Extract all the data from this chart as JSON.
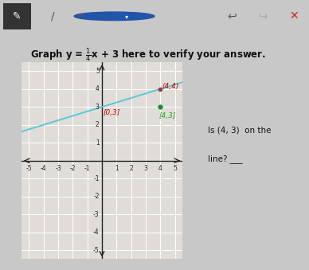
{
  "slope": 0.25,
  "intercept": 3,
  "xlim": [
    -5.5,
    5.5
  ],
  "ylim": [
    -5.5,
    5.5
  ],
  "line_color": "#5bc8d8",
  "line_x_start": -5.5,
  "line_x_end": 5.5,
  "point_on_line_x": 4,
  "point_on_line_y": 4,
  "point_on_line_color": "#5a5a5a",
  "point_test_x": 4,
  "point_test_y": 3,
  "point_test_color": "#228B22",
  "label_on_line": "(4,4)",
  "label_on_line_color": "#cc0000",
  "label_test": "[4,3]",
  "label_test_color": "#22aa22",
  "label_intercept": "[0,3]",
  "label_intercept_color": "#cc0000",
  "side_text_line1": "Is (4, 3)  on the",
  "side_text_line2": "line? ___",
  "outer_bg": "#c8c8c8",
  "panel_bg": "#f0eeeb",
  "plot_bg": "#e0ddd8",
  "grid_color": "#ffffff",
  "axis_color": "#222222",
  "toolbar_bg": "#ffffff",
  "toolbar_btn_bg": "#333333",
  "title_fontsize": 8.5,
  "tick_fontsize": 5.5,
  "label_fontsize": 6.0
}
